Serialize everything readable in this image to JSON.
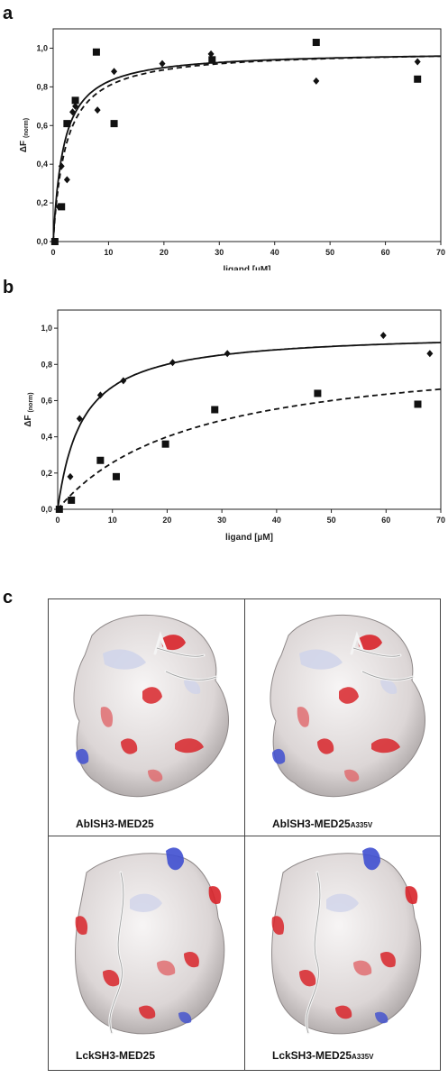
{
  "panels": {
    "a": "a",
    "b": "b",
    "c": "c"
  },
  "chart_data": [
    {
      "type": "scatter",
      "xlabel": "ligand [µM]",
      "ylabel_main": "ΔF",
      "ylabel_sub": "(norm)",
      "xlim": [
        0,
        70
      ],
      "ylim": [
        0,
        1.1
      ],
      "xticks": [
        "0",
        "10",
        "20",
        "30",
        "40",
        "50",
        "60",
        "70"
      ],
      "yticks": [
        "0,0",
        "0,2",
        "0,4",
        "0,6",
        "0,8",
        "1,0"
      ],
      "grid": false,
      "series": [
        {
          "marker": "diamond",
          "points": [
            [
              0.3,
              0.0
            ],
            [
              1.0,
              0.18
            ],
            [
              1.5,
              0.39
            ],
            [
              2.5,
              0.32
            ],
            [
              3.5,
              0.67
            ],
            [
              4.0,
              0.7
            ],
            [
              8.0,
              0.68
            ],
            [
              11.0,
              0.88
            ],
            [
              19.7,
              0.92
            ],
            [
              28.5,
              0.97
            ],
            [
              47.5,
              0.83
            ],
            [
              65.8,
              0.93
            ]
          ],
          "fit": {
            "line": "solid",
            "bmax": 0.985,
            "kd": 1.9
          }
        },
        {
          "marker": "square",
          "points": [
            [
              0.3,
              0.0
            ],
            [
              1.5,
              0.18
            ],
            [
              2.5,
              0.61
            ],
            [
              4.0,
              0.73
            ],
            [
              7.8,
              0.98
            ],
            [
              11.0,
              0.61
            ],
            [
              28.7,
              0.94
            ],
            [
              47.5,
              1.03
            ],
            [
              65.8,
              0.84
            ]
          ],
          "fit": {
            "line": "dashed",
            "bmax": 0.99,
            "kd": 2.3
          }
        }
      ]
    },
    {
      "type": "scatter",
      "xlabel": "ligand [µM]",
      "ylabel_main": "ΔF",
      "ylabel_sub": "(norm)",
      "xlim": [
        0,
        70
      ],
      "ylim": [
        0,
        1.1
      ],
      "xticks": [
        "0",
        "10",
        "20",
        "30",
        "40",
        "50",
        "60",
        "70"
      ],
      "yticks": [
        "0,0",
        "0,2",
        "0,4",
        "0,6",
        "0,8",
        "1,0"
      ],
      "grid": false,
      "series": [
        {
          "marker": "diamond",
          "points": [
            [
              0.3,
              0.0
            ],
            [
              2.3,
              0.18
            ],
            [
              4.0,
              0.5
            ],
            [
              7.8,
              0.63
            ],
            [
              12.0,
              0.71
            ],
            [
              21.0,
              0.81
            ],
            [
              31.0,
              0.86
            ],
            [
              59.5,
              0.96
            ],
            [
              68.0,
              0.86
            ]
          ],
          "fit": {
            "line": "solid",
            "bmax": 0.98,
            "kd": 4.5
          }
        },
        {
          "marker": "square",
          "points": [
            [
              0.3,
              0.0
            ],
            [
              2.5,
              0.05
            ],
            [
              7.8,
              0.27
            ],
            [
              10.7,
              0.18
            ],
            [
              19.7,
              0.36
            ],
            [
              28.7,
              0.55
            ],
            [
              47.5,
              0.64
            ],
            [
              65.8,
              0.58
            ]
          ],
          "fit": {
            "line": "dashed",
            "bmax": 0.9,
            "kd": 25
          }
        }
      ]
    }
  ],
  "structures": [
    {
      "name": "AblSH3-MED25",
      "sub": ""
    },
    {
      "name": "AblSH3-MED25",
      "sub": "A335V"
    },
    {
      "name": "LckSH3-MED25",
      "sub": ""
    },
    {
      "name": "LckSH3-MED25",
      "sub": "A335V"
    }
  ],
  "colors": {
    "surface": "#e9e6e6",
    "negative": "#d8242a",
    "positive": "#3f4fd0",
    "ligand": "#f4f4f4"
  }
}
